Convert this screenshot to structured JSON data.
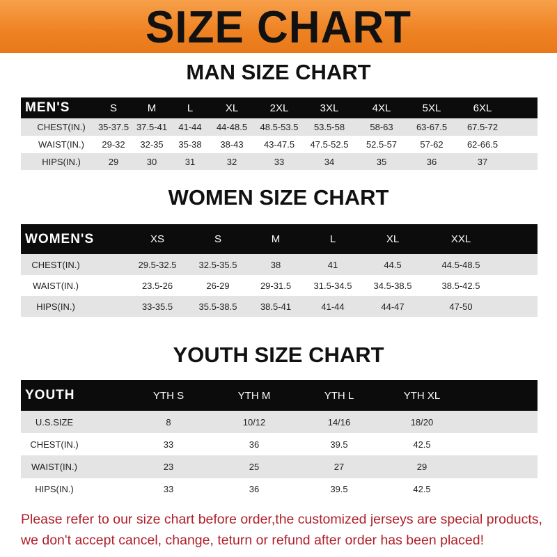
{
  "title": "SIZE CHART",
  "men": {
    "title": "MAN SIZE CHART",
    "header": [
      "MEN'S",
      "S",
      "M",
      "L",
      "XL",
      "2XL",
      "3XL",
      "4XL",
      "5XL",
      "6XL"
    ],
    "rows": [
      [
        "CHEST(IN.)",
        "35-37.5",
        "37.5-41",
        "41-44",
        "44-48.5",
        "48.5-53.5",
        "53.5-58",
        "58-63",
        "63-67.5",
        "67.5-72"
      ],
      [
        "WAIST(IN.)",
        "29-32",
        "32-35",
        "35-38",
        "38-43",
        "43-47.5",
        "47.5-52.5",
        "52.5-57",
        "57-62",
        "62-66.5"
      ],
      [
        "HIPS(IN.)",
        "29",
        "30",
        "31",
        "32",
        "33",
        "34",
        "35",
        "36",
        "37"
      ]
    ]
  },
  "women": {
    "title": "WOMEN SIZE CHART",
    "header": [
      "WOMEN'S",
      "XS",
      "S",
      "M",
      "L",
      "XL",
      "XXL"
    ],
    "rows": [
      [
        "CHEST(IN.)",
        "29.5-32.5",
        "32.5-35.5",
        "38",
        "41",
        "44.5",
        "44.5-48.5"
      ],
      [
        "WAIST(IN.)",
        "23.5-26",
        "26-29",
        "29-31.5",
        "31.5-34.5",
        "34.5-38.5",
        "38.5-42.5"
      ],
      [
        "HIPS(IN.)",
        "33-35.5",
        "35.5-38.5",
        "38.5-41",
        "41-44",
        "44-47",
        "47-50"
      ]
    ]
  },
  "youth": {
    "title": "YOUTH SIZE CHART",
    "header": [
      "YOUTH",
      "YTH S",
      "YTH M",
      "YTH L",
      "YTH XL"
    ],
    "rows": [
      [
        "U.S.SIZE",
        "8",
        "10/12",
        "14/16",
        "18/20"
      ],
      [
        "CHEST(IN.)",
        "33",
        "36",
        "39.5",
        "42.5"
      ],
      [
        "WAIST(IN.)",
        "23",
        "25",
        "27",
        "29"
      ],
      [
        "HIPS(IN.)",
        "33",
        "36",
        "39.5",
        "42.5"
      ]
    ]
  },
  "notice": [
    "Please refer to our size chart before order,the customized jerseys are special products,",
    "we don't accept cancel, change, teturn or refund after order has been placed!"
  ],
  "colors": {
    "banner": "#ee8222",
    "header_row": "#0c0c0c",
    "stripe": "#e4e4e4",
    "notice": "#b0202a"
  }
}
